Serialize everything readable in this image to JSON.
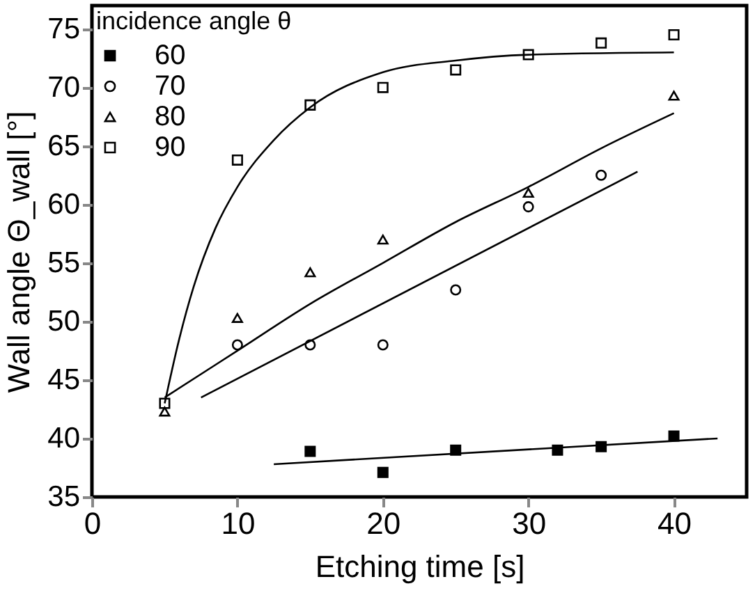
{
  "chart_data": {
    "type": "scatter",
    "xlabel": "Etching time [s]",
    "ylabel": "Wall angle  Θ_wall [°]",
    "legend_title": "incidence angle θ",
    "legend": "top left",
    "xlim": [
      0,
      45
    ],
    "xticks": [
      0,
      10,
      20,
      30,
      40
    ],
    "ylim": [
      35,
      77
    ],
    "yticks": [
      35,
      40,
      45,
      50,
      55,
      60,
      65,
      70,
      75
    ],
    "grid": false,
    "series": [
      {
        "name": "60",
        "color": "#000000",
        "marker": "square-filled",
        "x": [
          15,
          20,
          25,
          32,
          35,
          40
        ],
        "values": [
          38.9,
          37.1,
          39.0,
          39.0,
          39.3,
          40.2
        ]
      },
      {
        "name": "70",
        "color": "#000000",
        "marker": "circle",
        "x": [
          10,
          15,
          20,
          25,
          30,
          35
        ],
        "values": [
          48.0,
          48.0,
          48.0,
          52.7,
          59.8,
          62.5
        ]
      },
      {
        "name": "80",
        "color": "#000000",
        "marker": "triangle",
        "x": [
          5,
          10,
          15,
          20,
          30,
          40
        ],
        "values": [
          42.3,
          50.3,
          54.2,
          57.0,
          61.0,
          69.3
        ]
      },
      {
        "name": "90",
        "color": "#000000",
        "marker": "square",
        "x": [
          5,
          10,
          15,
          20,
          25,
          30,
          35,
          40
        ],
        "values": [
          43.0,
          63.8,
          68.5,
          70.0,
          71.5,
          72.8,
          73.8,
          74.5
        ]
      },
      {
        "type": "line",
        "color": "#000000",
        "marker": "none",
        "x": [
          12.5,
          43
        ],
        "values": [
          37.8,
          40.0
        ]
      },
      {
        "type": "line",
        "color": "#000000",
        "marker": "none",
        "x": [
          7.5,
          37.5
        ],
        "values": [
          43.5,
          62.8
        ]
      },
      {
        "type": "line",
        "color": "#000000",
        "marker": "none",
        "x": [
          5,
          10,
          15,
          20,
          25,
          30,
          35,
          40
        ],
        "values": [
          43.5,
          47.5,
          51.5,
          55.0,
          58.5,
          61.5,
          64.8,
          67.8
        ]
      },
      {
        "type": "line",
        "color": "#000000",
        "marker": "none",
        "x": [
          5,
          6,
          7,
          8.5,
          10,
          12.5,
          15,
          20,
          25,
          30,
          40
        ],
        "values": [
          43.0,
          48.5,
          53.0,
          58.0,
          61.5,
          65.5,
          68.3,
          71.3,
          72.3,
          72.8,
          73.0
        ]
      }
    ]
  }
}
